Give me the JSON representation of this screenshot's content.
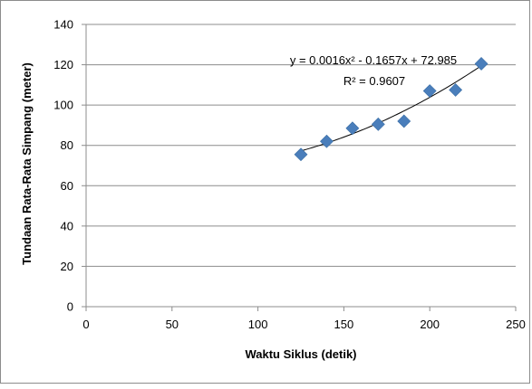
{
  "chart_data": {
    "type": "scatter",
    "title": "",
    "xlabel": "Waktu Siklus (detik)",
    "ylabel": "Tundaan Rata-Rata Simpang (meter)",
    "xlim": [
      0,
      250
    ],
    "ylim": [
      0,
      140
    ],
    "x_ticks": [
      0,
      50,
      100,
      150,
      200,
      250
    ],
    "y_ticks": [
      0,
      20,
      40,
      60,
      80,
      100,
      120,
      140
    ],
    "grid": "horizontal",
    "legend": "none",
    "marker": "diamond",
    "marker_color": "#4a7ebb",
    "trendline_color": "#000000",
    "series": [
      {
        "x": [
          125,
          140,
          155,
          170,
          185,
          200,
          215,
          230
        ],
        "y": [
          75.5,
          82,
          88.5,
          90.5,
          92,
          107,
          107.5,
          120.5
        ]
      }
    ],
    "trendline": {
      "type": "polynomial",
      "coefficients": [
        0.0016,
        -0.1657,
        72.985
      ],
      "x_range": [
        125,
        230
      ],
      "equation_label": "y = 0.0016x² - 0.1657x + 72.985",
      "r2_label": "R² = 0.9607"
    }
  }
}
